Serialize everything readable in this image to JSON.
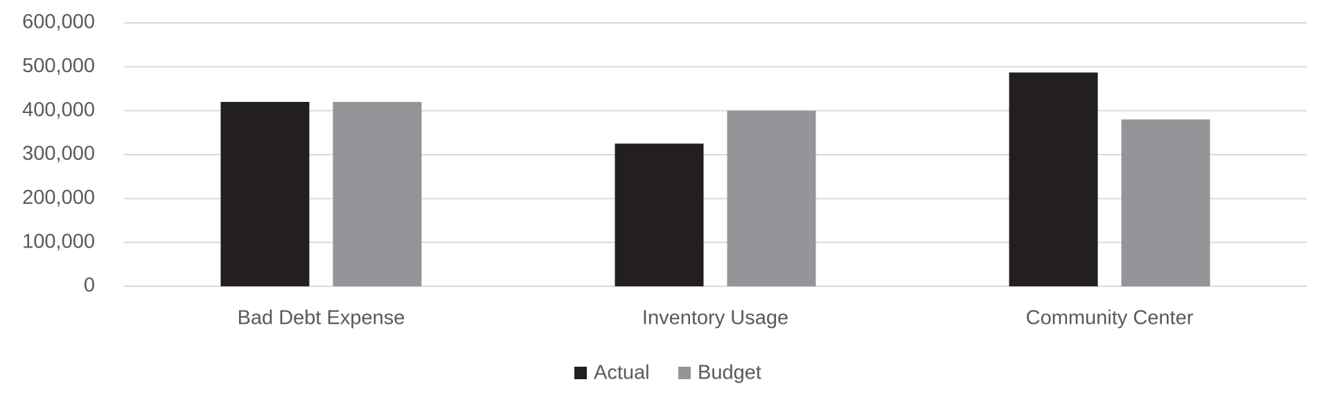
{
  "chart_data": {
    "type": "bar",
    "categories": [
      "Bad Debt Expense",
      "Inventory Usage",
      "Community Center"
    ],
    "series": [
      {
        "name": "Actual",
        "color": "#231f20",
        "values": [
          420000,
          325000,
          487000
        ]
      },
      {
        "name": "Budget",
        "color": "#939598",
        "values": [
          420000,
          400000,
          380000
        ]
      }
    ],
    "ylim": [
      0,
      600000
    ],
    "yticks": [
      0,
      {
        "value": 100000,
        "label": "100,000"
      },
      {
        "value": 200000,
        "label": "200,000"
      },
      {
        "value": 300000,
        "label": "300,000"
      },
      {
        "value": 400000,
        "label": "400,000"
      },
      {
        "value": 500000,
        "label": "500,000"
      },
      {
        "value": 600000,
        "label": "600,000"
      }
    ],
    "grid": true,
    "legend": "bottom"
  }
}
